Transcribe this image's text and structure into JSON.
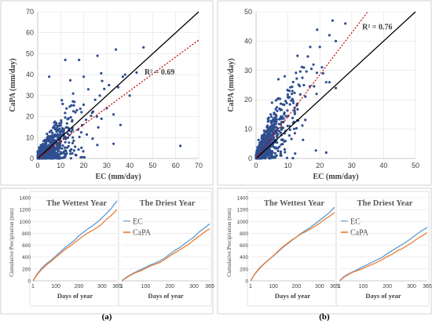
{
  "chart_data": [
    {
      "panel": "a",
      "type": "scatter",
      "xlabel": "EC (mm/day)",
      "ylabel": "CaPA (mm/day)",
      "xlim": [
        0,
        70
      ],
      "ylim": [
        0,
        70
      ],
      "xticks": [
        "0",
        "10",
        "20",
        "30",
        "40",
        "50",
        "60",
        "70"
      ],
      "yticks": [
        "0",
        "10",
        "20",
        "30",
        "40",
        "50",
        "60",
        "70"
      ],
      "r2_label": "R² = 0.69",
      "one_to_one": [
        [
          0,
          0
        ],
        [
          70,
          70
        ]
      ],
      "fit_line": [
        [
          0,
          0
        ],
        [
          70,
          56.5
        ]
      ],
      "point_color": "#2f4f8f",
      "fit_color": "#c00000",
      "outliers": [
        [
          46,
          53
        ],
        [
          43,
          41
        ],
        [
          62,
          6
        ],
        [
          37,
          39
        ],
        [
          35,
          34
        ],
        [
          28,
          37
        ],
        [
          33,
          21
        ],
        [
          30,
          24
        ],
        [
          25,
          28
        ],
        [
          27,
          30
        ],
        [
          20,
          39
        ],
        [
          26,
          49
        ],
        [
          38,
          40
        ],
        [
          31,
          35
        ],
        [
          12,
          47
        ],
        [
          5,
          39
        ],
        [
          18,
          47
        ],
        [
          34,
          52
        ],
        [
          40,
          30
        ],
        [
          33,
          7
        ],
        [
          36,
          16
        ],
        [
          22,
          33
        ]
      ]
    },
    {
      "panel": "b",
      "type": "scatter",
      "xlabel": "EC (mm/day)",
      "ylabel": "CaPA (mm/day)",
      "xlim": [
        0,
        50
      ],
      "ylim": [
        0,
        50
      ],
      "xticks": [
        "0",
        "10",
        "20",
        "30",
        "40",
        "50"
      ],
      "yticks": [
        "0",
        "10",
        "20",
        "30",
        "40",
        "50"
      ],
      "r2_label": "R² = 0.76",
      "one_to_one": [
        [
          0,
          0
        ],
        [
          50,
          50
        ]
      ],
      "fit_line": [
        [
          0,
          0
        ],
        [
          35,
          50
        ]
      ],
      "point_color": "#2f4f8f",
      "fit_color": "#c00000",
      "outliers": [
        [
          24,
          47
        ],
        [
          28,
          46
        ],
        [
          23,
          42
        ],
        [
          25,
          40
        ],
        [
          20,
          38
        ],
        [
          17,
          38
        ],
        [
          13,
          35
        ],
        [
          15,
          31
        ],
        [
          22,
          26
        ],
        [
          21,
          29
        ],
        [
          19,
          22
        ],
        [
          23,
          26
        ],
        [
          9,
          28
        ],
        [
          7,
          27
        ],
        [
          18,
          32
        ],
        [
          5,
          19
        ],
        [
          15,
          25
        ],
        [
          25,
          24
        ],
        [
          22,
          2
        ]
      ]
    },
    {
      "panel": "a-wettest",
      "type": "line",
      "title": "The Wettest Year",
      "xlabel": "Days of year",
      "ylabel": "Cumulative Precipitation (mm)",
      "xlim": [
        1,
        365
      ],
      "ylim": [
        0,
        1400
      ],
      "xticks": [
        "1",
        "100",
        "200",
        "300",
        "365"
      ],
      "yticks": [
        "0",
        "200",
        "400",
        "600",
        "800",
        "1000",
        "1200",
        "1400"
      ],
      "series": [
        {
          "name": "EC",
          "color": "#5b9bd5",
          "x": [
            1,
            20,
            40,
            60,
            80,
            100,
            120,
            140,
            160,
            180,
            200,
            220,
            240,
            260,
            280,
            300,
            320,
            340,
            365
          ],
          "y": [
            0,
            120,
            220,
            290,
            350,
            420,
            490,
            560,
            620,
            680,
            760,
            820,
            880,
            930,
            990,
            1060,
            1140,
            1220,
            1350
          ]
        },
        {
          "name": "CaPA",
          "color": "#ed7d31",
          "x": [
            1,
            20,
            40,
            60,
            80,
            100,
            120,
            140,
            160,
            180,
            200,
            220,
            240,
            260,
            280,
            300,
            320,
            340,
            365
          ],
          "y": [
            0,
            110,
            200,
            270,
            330,
            400,
            460,
            530,
            580,
            640,
            700,
            760,
            810,
            850,
            900,
            960,
            1040,
            1100,
            1200
          ]
        }
      ]
    },
    {
      "panel": "a-driest",
      "type": "line",
      "title": "The Driest Year",
      "xlabel": "Days of year",
      "ylabel": "",
      "xlim": [
        1,
        365
      ],
      "ylim": [
        0,
        1400
      ],
      "xticks": [
        "1",
        "100",
        "200",
        "300",
        "365"
      ],
      "series": [
        {
          "name": "EC",
          "color": "#5b9bd5",
          "x": [
            1,
            20,
            40,
            60,
            80,
            100,
            120,
            140,
            160,
            180,
            200,
            220,
            240,
            260,
            280,
            300,
            320,
            340,
            365
          ],
          "y": [
            0,
            60,
            110,
            150,
            190,
            230,
            270,
            300,
            340,
            390,
            450,
            510,
            560,
            620,
            680,
            740,
            820,
            880,
            960
          ]
        },
        {
          "name": "CaPA",
          "color": "#ed7d31",
          "x": [
            1,
            20,
            40,
            60,
            80,
            100,
            120,
            140,
            160,
            180,
            200,
            220,
            240,
            260,
            280,
            300,
            320,
            340,
            365
          ],
          "y": [
            0,
            50,
            100,
            140,
            170,
            210,
            250,
            280,
            310,
            360,
            420,
            470,
            520,
            570,
            620,
            690,
            750,
            810,
            880
          ]
        }
      ]
    },
    {
      "panel": "b-wettest",
      "type": "line",
      "title": "The Wettest Year",
      "xlabel": "Days of year",
      "ylabel": "Cumulative Precipitation (mm)",
      "xlim": [
        1,
        365
      ],
      "ylim": [
        0,
        1400
      ],
      "xticks": [
        "1",
        "100",
        "200",
        "300",
        "365"
      ],
      "yticks": [
        "0",
        "200",
        "400",
        "600",
        "800",
        "1000",
        "1200",
        "1400"
      ],
      "series": [
        {
          "name": "EC",
          "color": "#5b9bd5",
          "x": [
            1,
            20,
            40,
            60,
            80,
            100,
            120,
            140,
            160,
            180,
            200,
            220,
            240,
            260,
            280,
            300,
            320,
            340,
            365
          ],
          "y": [
            0,
            120,
            220,
            290,
            360,
            420,
            490,
            560,
            620,
            680,
            740,
            800,
            850,
            900,
            960,
            1020,
            1080,
            1140,
            1240
          ]
        },
        {
          "name": "CaPA",
          "color": "#ed7d31",
          "x": [
            1,
            20,
            40,
            60,
            80,
            100,
            120,
            140,
            160,
            180,
            200,
            220,
            240,
            260,
            280,
            300,
            320,
            340,
            365
          ],
          "y": [
            0,
            115,
            210,
            285,
            355,
            425,
            500,
            570,
            630,
            690,
            740,
            790,
            830,
            870,
            920,
            970,
            1030,
            1080,
            1150
          ]
        }
      ]
    },
    {
      "panel": "b-driest",
      "type": "line",
      "title": "The Driest Year",
      "xlabel": "Days of year",
      "ylabel": "",
      "xlim": [
        1,
        365
      ],
      "ylim": [
        0,
        1400
      ],
      "xticks": [
        "1",
        "100",
        "200",
        "300",
        "365"
      ],
      "series": [
        {
          "name": "EC",
          "color": "#5b9bd5",
          "x": [
            1,
            20,
            40,
            60,
            80,
            100,
            120,
            140,
            160,
            180,
            200,
            220,
            240,
            260,
            280,
            300,
            320,
            340,
            365
          ],
          "y": [
            0,
            70,
            120,
            160,
            200,
            240,
            280,
            320,
            360,
            400,
            460,
            510,
            560,
            610,
            660,
            720,
            780,
            840,
            900
          ]
        },
        {
          "name": "CaPA",
          "color": "#ed7d31",
          "x": [
            1,
            20,
            40,
            60,
            80,
            100,
            120,
            140,
            160,
            180,
            200,
            220,
            240,
            260,
            280,
            300,
            320,
            340,
            365
          ],
          "y": [
            0,
            60,
            110,
            150,
            180,
            210,
            250,
            280,
            320,
            360,
            410,
            450,
            500,
            540,
            590,
            640,
            700,
            750,
            810
          ]
        }
      ]
    }
  ],
  "labels": {
    "a": "(a)",
    "b": "(b)"
  }
}
